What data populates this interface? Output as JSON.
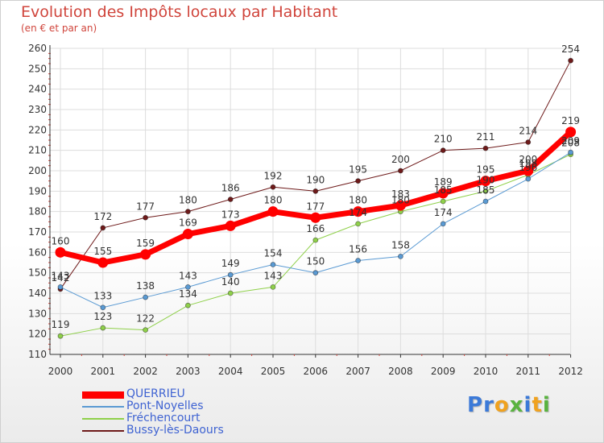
{
  "title": "Evolution des Impôts locaux par Habitant",
  "subtitle": "(en € et par an)",
  "chart_data": {
    "type": "line",
    "x": [
      "2000",
      "2001",
      "2002",
      "2003",
      "2004",
      "2005",
      "2006",
      "2007",
      "2008",
      "2009",
      "2010",
      "2011",
      "2012"
    ],
    "ylim": [
      110,
      260
    ],
    "yticks": [
      110,
      120,
      130,
      140,
      150,
      160,
      170,
      180,
      190,
      200,
      210,
      220,
      230,
      240,
      250,
      260
    ],
    "grid": true,
    "legend_position": "bottom-left",
    "series": [
      {
        "name": "Bussy-lès-Daours",
        "color": "#6e1a1a",
        "width": 1,
        "values": [
          142,
          172,
          177,
          180,
          186,
          192,
          190,
          195,
          200,
          210,
          211,
          214,
          254
        ]
      },
      {
        "name": "Fréchencourt",
        "color": "#8fd04a",
        "width": 1,
        "values": [
          119,
          123,
          122,
          134,
          140,
          143,
          166,
          174,
          180,
          185,
          190,
          198,
          208
        ]
      },
      {
        "name": "Pont-Noyelles",
        "color": "#5a9ad3",
        "width": 1,
        "values": [
          143,
          133,
          138,
          143,
          149,
          154,
          150,
          156,
          158,
          174,
          185,
          196,
          209
        ]
      },
      {
        "name": "QUERRIEU",
        "color": "#ff0000",
        "width": 7,
        "values": [
          160,
          155,
          159,
          169,
          173,
          180,
          177,
          180,
          183,
          189,
          195,
          200,
          219
        ]
      }
    ]
  },
  "legend": [
    {
      "name": "QUERRIEU",
      "color": "#ff0000",
      "width": 9
    },
    {
      "name": "Pont-Noyelles",
      "color": "#5a9ad3",
      "width": 2
    },
    {
      "name": "Fréchencourt",
      "color": "#8fd04a",
      "width": 2
    },
    {
      "name": "Bussy-lès-Daours",
      "color": "#6e1a1a",
      "width": 2
    }
  ],
  "logo": {
    "text": "Proxiti",
    "letters": [
      {
        "ch": "P",
        "color": "#3c7ad8"
      },
      {
        "ch": "r",
        "color": "#3c7ad8"
      },
      {
        "ch": "o",
        "color": "#f0a21f"
      },
      {
        "ch": "x",
        "color": "#59b33f"
      },
      {
        "ch": "i",
        "color": "#3c7ad8"
      },
      {
        "ch": "t",
        "color": "#f0a21f"
      },
      {
        "ch": "i",
        "color": "#59b33f"
      }
    ]
  }
}
